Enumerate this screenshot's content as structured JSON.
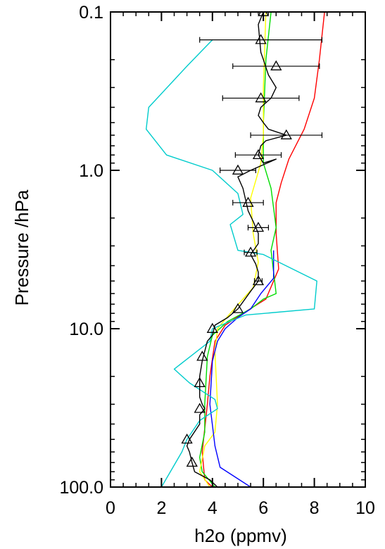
{
  "chart_data": {
    "type": "line",
    "title": "",
    "xlabel": "h2o (ppmv)",
    "ylabel": "Pressure /hPa",
    "xlim": [
      0,
      10
    ],
    "ylim": [
      100.0,
      0.1
    ],
    "yscale": "log",
    "grid": false,
    "x_ticks": [
      0,
      2,
      4,
      6,
      8,
      10
    ],
    "x_tick_labels": [
      "0",
      "2",
      "4",
      "6",
      "8",
      "10"
    ],
    "y_ticks": [
      0.1,
      1.0,
      10.0,
      100.0
    ],
    "y_tick_labels": [
      "0.1",
      "1.0",
      "10.0",
      "100.0"
    ],
    "series": [
      {
        "color": "#ff0000",
        "points": [
          [
            8.4,
            0.1
          ],
          [
            8.2,
            0.2
          ],
          [
            8.0,
            0.35
          ],
          [
            7.6,
            0.55
          ],
          [
            7.0,
            0.85
          ],
          [
            6.7,
            1.2
          ],
          [
            6.5,
            1.6
          ],
          [
            6.5,
            2.5
          ],
          [
            6.6,
            4.2
          ],
          [
            6.1,
            6.5
          ],
          [
            5.2,
            8.0
          ],
          [
            4.5,
            9.5
          ],
          [
            4.1,
            12
          ],
          [
            3.9,
            20
          ],
          [
            3.8,
            30
          ],
          [
            3.6,
            60
          ],
          [
            3.7,
            90
          ],
          [
            4.0,
            100
          ]
        ]
      },
      {
        "color": "#00dd00",
        "points": [
          [
            6.3,
            0.1
          ],
          [
            6.1,
            0.2
          ],
          [
            6.0,
            0.5
          ],
          [
            6.0,
            0.9
          ],
          [
            6.3,
            1.3
          ],
          [
            6.5,
            2.3
          ],
          [
            6.3,
            3.2
          ],
          [
            6.5,
            6.0
          ],
          [
            6.0,
            6.5
          ],
          [
            5.5,
            7.5
          ],
          [
            4.6,
            9.0
          ],
          [
            4.0,
            11
          ],
          [
            3.8,
            15
          ],
          [
            3.7,
            30
          ],
          [
            3.7,
            45
          ],
          [
            3.5,
            65
          ],
          [
            3.6,
            80
          ],
          [
            4.1,
            100
          ]
        ]
      },
      {
        "color": "#ffff00",
        "points": [
          [
            6.1,
            0.1
          ],
          [
            6.0,
            0.3
          ],
          [
            6.0,
            0.6
          ],
          [
            5.9,
            0.9
          ],
          [
            5.5,
            1.5
          ],
          [
            5.6,
            2.5
          ],
          [
            5.8,
            3.8
          ],
          [
            5.6,
            5.5
          ],
          [
            5.2,
            6.5
          ],
          [
            4.7,
            8.0
          ],
          [
            4.2,
            10
          ],
          [
            4.1,
            14
          ],
          [
            4.2,
            30
          ],
          [
            4.1,
            45
          ],
          [
            3.7,
            55
          ],
          [
            3.5,
            80
          ],
          [
            3.9,
            100
          ]
        ]
      },
      {
        "color": "#0000ff",
        "points": [
          [
            6.4,
            3.2
          ],
          [
            6.4,
            4.8
          ],
          [
            5.9,
            6.0
          ],
          [
            5.5,
            7.5
          ],
          [
            5.0,
            8.5
          ],
          [
            4.5,
            10
          ],
          [
            4.2,
            12
          ],
          [
            4.0,
            16
          ],
          [
            3.9,
            30
          ],
          [
            4.1,
            55
          ],
          [
            4.3,
            75
          ],
          [
            5.5,
            100
          ]
        ]
      },
      {
        "color": "#00cccc",
        "points": [
          [
            4.0,
            0.15
          ],
          [
            3.0,
            0.22
          ],
          [
            1.5,
            0.4
          ],
          [
            1.4,
            0.55
          ],
          [
            2.2,
            0.8
          ],
          [
            4.0,
            1.0
          ],
          [
            5.0,
            1.4
          ],
          [
            5.2,
            1.9
          ],
          [
            4.7,
            2.2
          ],
          [
            5.0,
            3.2
          ],
          [
            6.0,
            3.4
          ],
          [
            8.1,
            5.0
          ],
          [
            8.0,
            7.5
          ],
          [
            5.3,
            8.2
          ],
          [
            4.0,
            10
          ],
          [
            3.9,
            12
          ],
          [
            2.5,
            18
          ],
          [
            3.1,
            22
          ],
          [
            4.1,
            28
          ],
          [
            4.2,
            32
          ],
          [
            3.5,
            38
          ],
          [
            3.0,
            50
          ],
          [
            2.8,
            60
          ],
          [
            2.0,
            100
          ]
        ]
      },
      {
        "color": "#000000",
        "markers": true,
        "points": [
          [
            6.0,
            0.1
          ],
          [
            5.8,
            0.12
          ],
          [
            5.9,
            0.18
          ],
          [
            6.0,
            0.2
          ],
          [
            6.2,
            0.25
          ],
          [
            6.5,
            0.3
          ],
          [
            6.3,
            0.35
          ],
          [
            5.9,
            0.4
          ],
          [
            5.8,
            0.45
          ],
          [
            6.0,
            0.5
          ],
          [
            6.2,
            0.55
          ],
          [
            6.9,
            0.6
          ],
          [
            6.1,
            0.65
          ],
          [
            5.9,
            0.7
          ],
          [
            5.8,
            0.8
          ],
          [
            6.0,
            0.9
          ],
          [
            6.5,
            0.85
          ],
          [
            5.5,
            1.0
          ],
          [
            5.0,
            1.1
          ],
          [
            5.2,
            1.3
          ],
          [
            5.4,
            1.8
          ],
          [
            5.6,
            2.1
          ],
          [
            5.8,
            2.5
          ],
          [
            5.8,
            2.9
          ],
          [
            5.5,
            3.4
          ],
          [
            5.7,
            3.9
          ],
          [
            5.8,
            4.4
          ],
          [
            5.8,
            5.0
          ],
          [
            5.5,
            5.8
          ],
          [
            5.0,
            7.5
          ],
          [
            4.6,
            8.5
          ],
          [
            4.1,
            9.5
          ],
          [
            4.0,
            11
          ],
          [
            3.8,
            12
          ],
          [
            3.6,
            16
          ],
          [
            3.5,
            20
          ],
          [
            3.5,
            27
          ],
          [
            3.6,
            30
          ],
          [
            3.7,
            32
          ],
          [
            3.5,
            35
          ],
          [
            3.5,
            40
          ],
          [
            3.1,
            50
          ],
          [
            3.0,
            55
          ],
          [
            3.1,
            60
          ],
          [
            3.2,
            70
          ],
          [
            3.3,
            80
          ],
          [
            3.9,
            90
          ],
          [
            4.2,
            100
          ]
        ]
      }
    ],
    "triangles": [
      {
        "x": 6.0,
        "p": 0.1,
        "xerr": 0.2
      },
      {
        "x": 5.9,
        "p": 0.15,
        "xerr": 2.4
      },
      {
        "x": 6.5,
        "p": 0.22,
        "xerr": 1.7
      },
      {
        "x": 5.9,
        "p": 0.35,
        "xerr": 1.5
      },
      {
        "x": 6.9,
        "p": 0.6,
        "xerr": 1.4
      },
      {
        "x": 5.8,
        "p": 0.8,
        "xerr": 0.9
      },
      {
        "x": 5.0,
        "p": 1.0,
        "xerr": 0.7
      },
      {
        "x": 5.4,
        "p": 1.6,
        "xerr": 0.6
      },
      {
        "x": 5.8,
        "p": 2.3,
        "xerr": 0.4
      },
      {
        "x": 5.5,
        "p": 3.3,
        "xerr": 0.25
      },
      {
        "x": 5.8,
        "p": 5.0,
        "xerr": 0.15
      },
      {
        "x": 5.0,
        "p": 7.5,
        "xerr": 0
      },
      {
        "x": 4.0,
        "p": 10.0,
        "xerr": 0
      },
      {
        "x": 3.6,
        "p": 15.0,
        "xerr": 0
      },
      {
        "x": 3.5,
        "p": 22.0,
        "xerr": 0
      },
      {
        "x": 3.5,
        "p": 32.0,
        "xerr": 0
      },
      {
        "x": 3.0,
        "p": 50.0,
        "xerr": 0
      },
      {
        "x": 3.2,
        "p": 70.0,
        "xerr": 0
      }
    ]
  }
}
